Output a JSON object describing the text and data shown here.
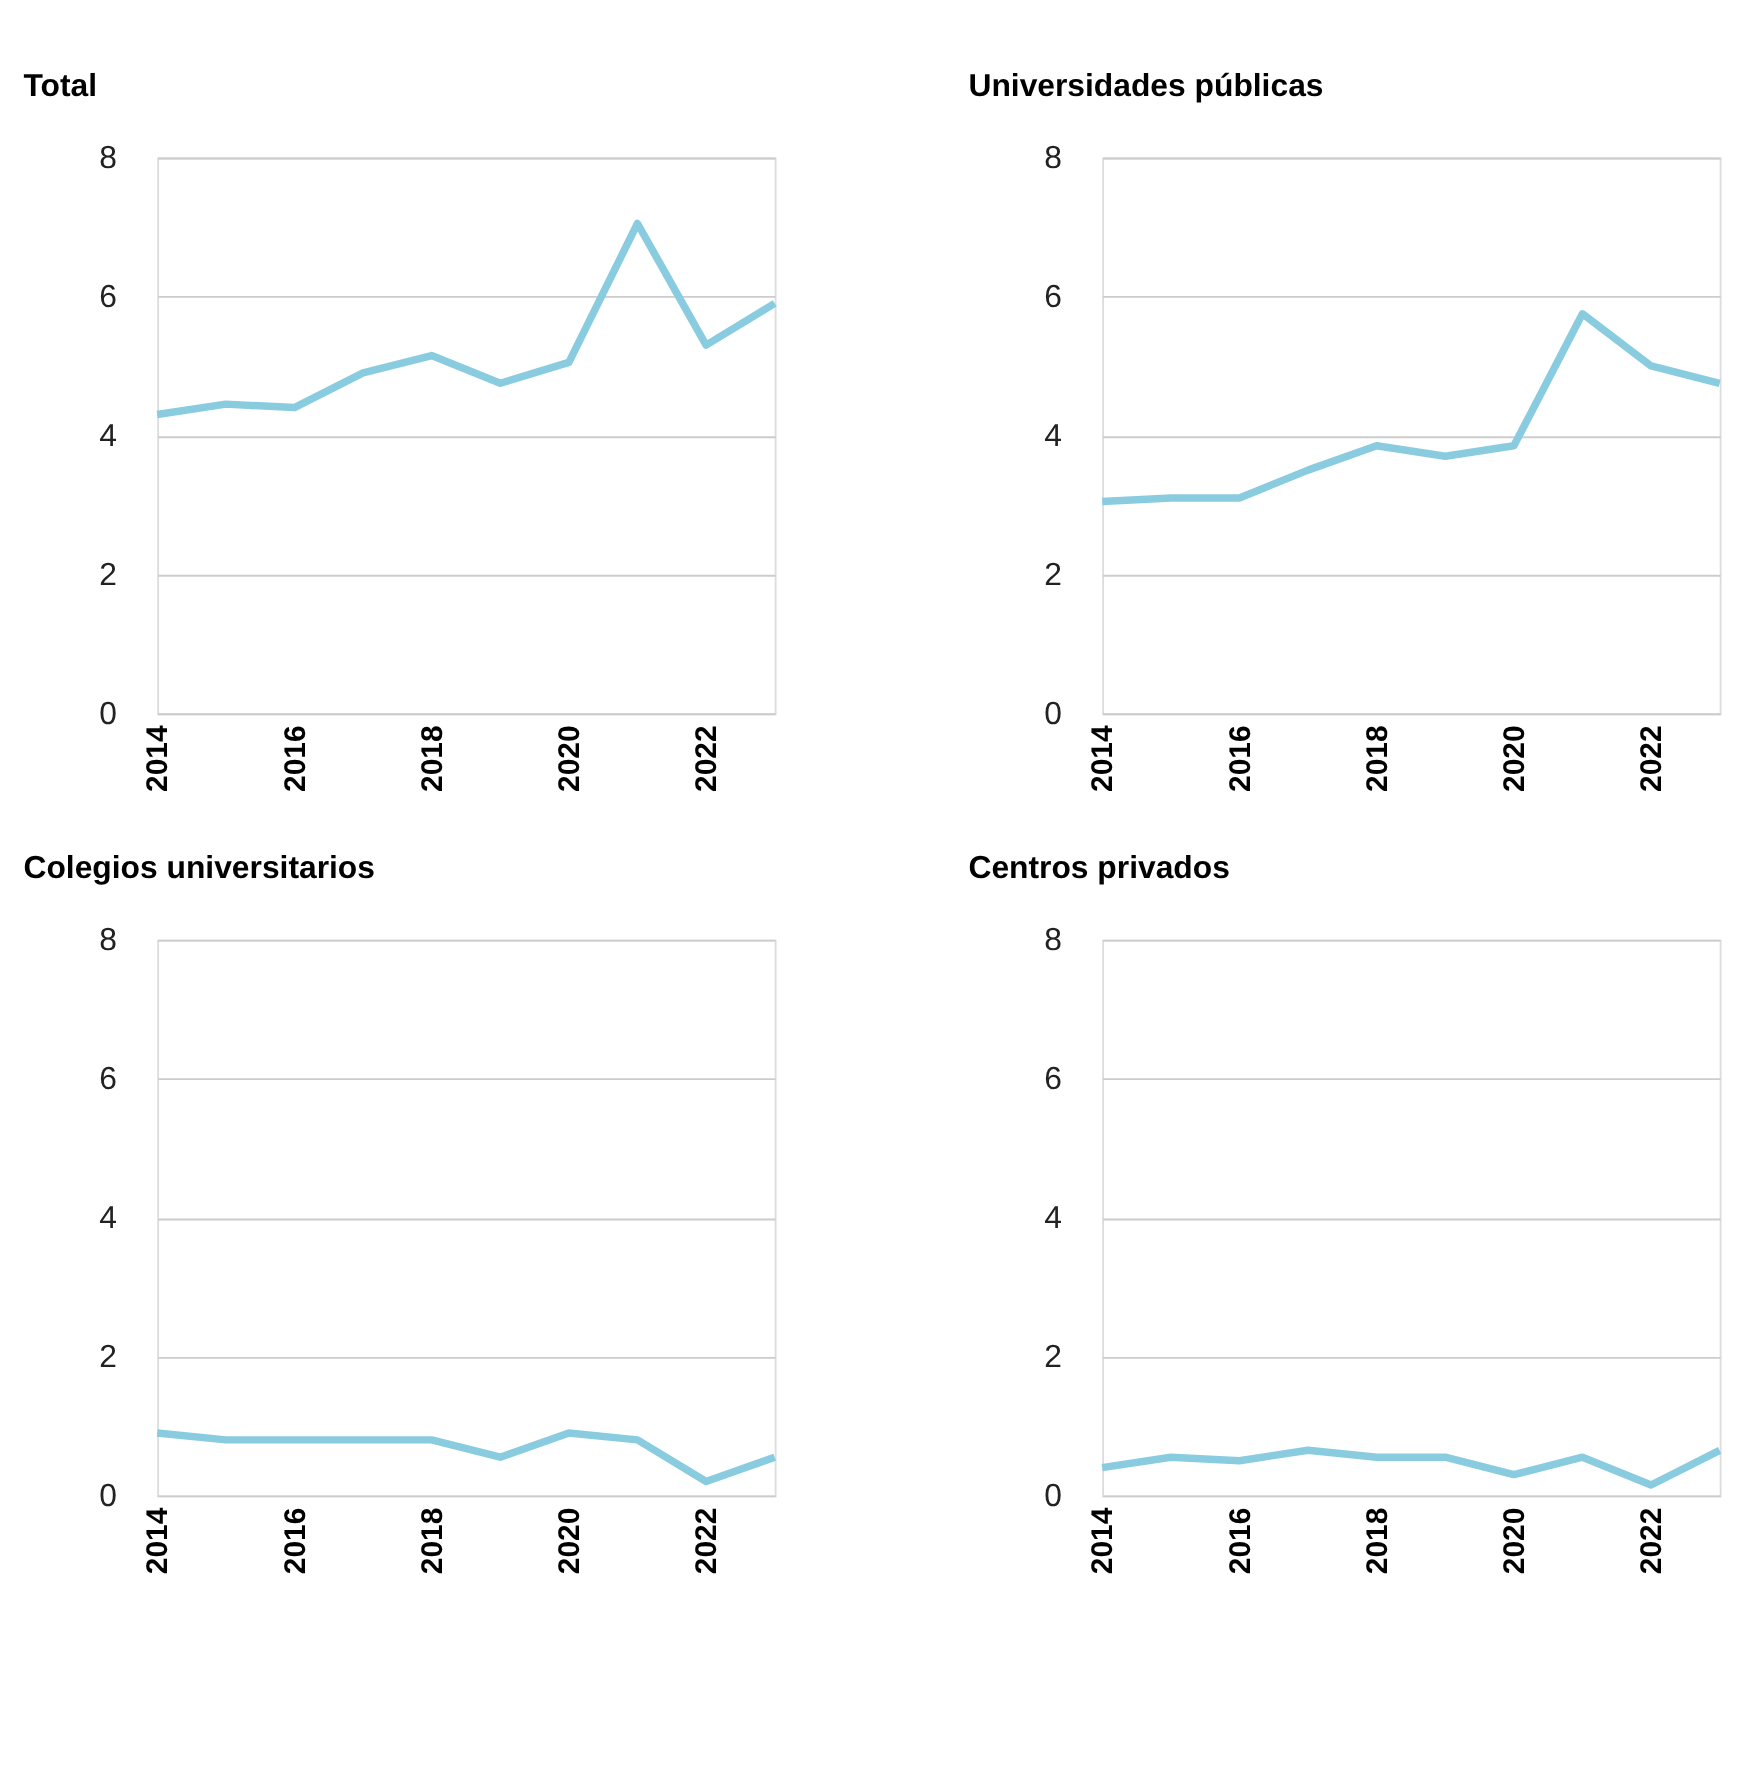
{
  "chart_data": [
    {
      "type": "line",
      "title": "Total",
      "x": [
        2014,
        2015,
        2016,
        2017,
        2018,
        2019,
        2020,
        2021,
        2022,
        2023
      ],
      "values": [
        4.3,
        4.45,
        4.4,
        4.9,
        5.15,
        4.75,
        5.05,
        7.05,
        5.3,
        5.9
      ],
      "color": "#89cce0",
      "xlim": [
        2014,
        2023
      ],
      "xticks": [
        2014,
        2016,
        2018,
        2020,
        2022
      ],
      "ylim": [
        0,
        8
      ],
      "yticks": [
        0,
        2,
        4,
        6,
        8
      ],
      "grid": "y"
    },
    {
      "type": "line",
      "title": "Universidades públicas",
      "x": [
        2014,
        2015,
        2016,
        2017,
        2018,
        2019,
        2020,
        2021,
        2022,
        2023
      ],
      "values": [
        3.05,
        3.1,
        3.1,
        3.5,
        3.85,
        3.7,
        3.85,
        5.75,
        5.0,
        4.75
      ],
      "color": "#89cce0",
      "xlim": [
        2014,
        2023
      ],
      "xticks": [
        2014,
        2016,
        2018,
        2020,
        2022
      ],
      "ylim": [
        0,
        8
      ],
      "yticks": [
        0,
        2,
        4,
        6,
        8
      ],
      "grid": "y"
    },
    {
      "type": "line",
      "title": "Colegios universitarios",
      "x": [
        2014,
        2015,
        2016,
        2017,
        2018,
        2019,
        2020,
        2021,
        2022,
        2023
      ],
      "values": [
        0.9,
        0.8,
        0.8,
        0.8,
        0.8,
        0.55,
        0.9,
        0.8,
        0.2,
        0.55
      ],
      "color": "#89cce0",
      "xlim": [
        2014,
        2023
      ],
      "xticks": [
        2014,
        2016,
        2018,
        2020,
        2022
      ],
      "ylim": [
        0,
        8
      ],
      "yticks": [
        0,
        2,
        4,
        6,
        8
      ],
      "grid": "y"
    },
    {
      "type": "line",
      "title": "Centros privados",
      "x": [
        2014,
        2015,
        2016,
        2017,
        2018,
        2019,
        2020,
        2021,
        2022,
        2023
      ],
      "values": [
        0.4,
        0.55,
        0.5,
        0.65,
        0.55,
        0.55,
        0.3,
        0.55,
        0.15,
        0.65
      ],
      "color": "#89cce0",
      "xlim": [
        2014,
        2023
      ],
      "xticks": [
        2014,
        2016,
        2018,
        2020,
        2022
      ],
      "ylim": [
        0,
        8
      ],
      "yticks": [
        0,
        2,
        4,
        6,
        8
      ],
      "grid": "y"
    }
  ]
}
